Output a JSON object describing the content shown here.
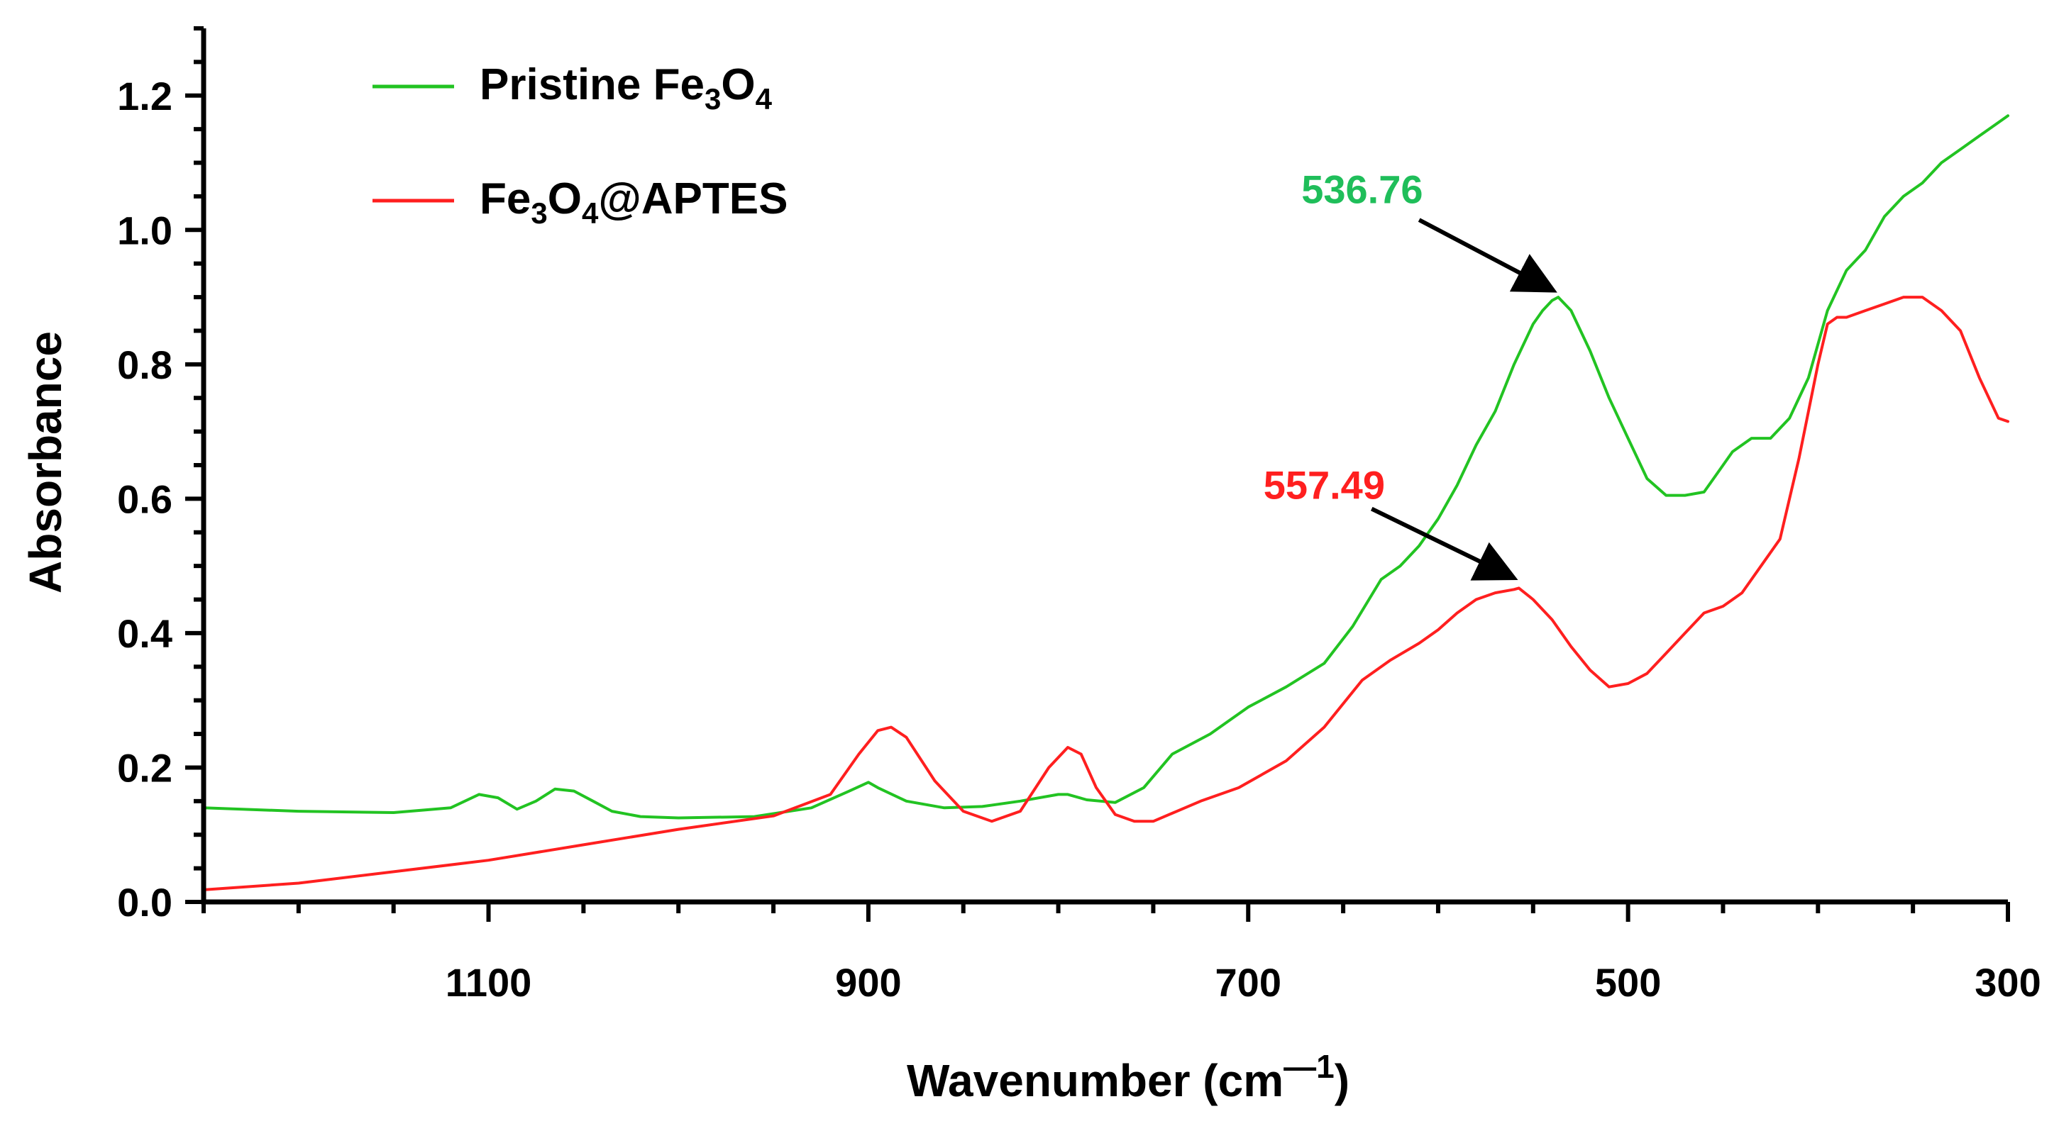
{
  "chart_data": {
    "type": "line",
    "title": "",
    "xlabel": "Wavenumber (cm",
    "xlabel_sup": "—1",
    "xlabel_close": ")",
    "ylabel": "Absorbance",
    "xlim": [
      1250,
      300
    ],
    "ylim": [
      0,
      1.3
    ],
    "xticks": [
      1100,
      900,
      700,
      500,
      300
    ],
    "xtick_labels": [
      "1100",
      "900",
      "700",
      "500",
      "300"
    ],
    "yticks": [
      0,
      0.2,
      0.4,
      0.6,
      0.8,
      1.0,
      1.2
    ],
    "ytick_labels": [
      "0.0",
      "0.2",
      "0.4",
      "0.6",
      "0.8",
      "1.0",
      "1.2"
    ],
    "grid": false,
    "legend_position": "top-left",
    "series": [
      {
        "name": "Pristine Fe3O4",
        "legend_main": "Pristine Fe",
        "legend_sub1": "3",
        "legend_mid": "O",
        "legend_sub2": "4",
        "legend_end": "",
        "color": "#22c322",
        "x": [
          1250,
          1200,
          1150,
          1120,
          1105,
          1095,
          1085,
          1075,
          1065,
          1055,
          1045,
          1035,
          1020,
          1000,
          960,
          930,
          910,
          900,
          895,
          880,
          860,
          840,
          820,
          800,
          795,
          785,
          770,
          755,
          740,
          720,
          700,
          680,
          660,
          645,
          630,
          620,
          610,
          600,
          590,
          580,
          570,
          560,
          550,
          545,
          540,
          536.76,
          530,
          520,
          510,
          500,
          490,
          480,
          470,
          460,
          455,
          445,
          435,
          425,
          415,
          405,
          395,
          385,
          375,
          365,
          355,
          345,
          335,
          325,
          315,
          305,
          300
        ],
        "y": [
          0.14,
          0.135,
          0.133,
          0.14,
          0.16,
          0.155,
          0.138,
          0.15,
          0.168,
          0.165,
          0.15,
          0.135,
          0.127,
          0.125,
          0.127,
          0.14,
          0.165,
          0.178,
          0.17,
          0.15,
          0.14,
          0.142,
          0.15,
          0.16,
          0.16,
          0.152,
          0.148,
          0.17,
          0.22,
          0.25,
          0.29,
          0.32,
          0.355,
          0.41,
          0.48,
          0.5,
          0.53,
          0.57,
          0.62,
          0.68,
          0.73,
          0.8,
          0.86,
          0.88,
          0.895,
          0.9,
          0.88,
          0.82,
          0.75,
          0.69,
          0.63,
          0.605,
          0.605,
          0.61,
          0.63,
          0.67,
          0.69,
          0.69,
          0.72,
          0.78,
          0.88,
          0.94,
          0.97,
          1.02,
          1.05,
          1.07,
          1.1,
          1.12,
          1.14,
          1.16,
          1.17
        ]
      },
      {
        "name": "Fe3O4@APTES",
        "legend_main": "Fe",
        "legend_sub1": "3",
        "legend_mid": "O",
        "legend_sub2": "4",
        "legend_end": "@APTES",
        "color": "#ff1f1f",
        "x": [
          1250,
          1200,
          1150,
          1100,
          1050,
          1000,
          950,
          920,
          905,
          895,
          888,
          880,
          865,
          850,
          835,
          820,
          805,
          795,
          788,
          780,
          770,
          760,
          750,
          740,
          725,
          705,
          680,
          660,
          640,
          625,
          610,
          600,
          590,
          580,
          570,
          560,
          557.49,
          550,
          540,
          530,
          520,
          510,
          500,
          490,
          480,
          470,
          460,
          450,
          440,
          430,
          420,
          410,
          400,
          395,
          390,
          385,
          375,
          365,
          355,
          350,
          345,
          335,
          325,
          315,
          305,
          300
        ],
        "y": [
          0.018,
          0.028,
          0.045,
          0.062,
          0.085,
          0.108,
          0.128,
          0.16,
          0.22,
          0.255,
          0.26,
          0.245,
          0.18,
          0.135,
          0.12,
          0.135,
          0.2,
          0.23,
          0.22,
          0.17,
          0.13,
          0.12,
          0.12,
          0.132,
          0.15,
          0.17,
          0.21,
          0.26,
          0.33,
          0.36,
          0.385,
          0.405,
          0.43,
          0.45,
          0.46,
          0.465,
          0.467,
          0.45,
          0.42,
          0.38,
          0.345,
          0.32,
          0.325,
          0.34,
          0.37,
          0.4,
          0.43,
          0.44,
          0.46,
          0.5,
          0.54,
          0.66,
          0.8,
          0.86,
          0.87,
          0.87,
          0.88,
          0.89,
          0.9,
          0.9,
          0.9,
          0.88,
          0.85,
          0.78,
          0.72,
          0.715
        ]
      }
    ],
    "annotations": [
      {
        "text": "536.76",
        "color": "#1fbe5a",
        "target_x": 536.76,
        "target_y": 0.9,
        "text_x": 640,
        "text_y": 1.04,
        "tail_x": 610,
        "tail_y": 1.015
      },
      {
        "text": "557.49",
        "color": "#ff1f1f",
        "target_x": 557.49,
        "target_y": 0.472,
        "text_x": 660,
        "text_y": 0.6,
        "tail_x": 635,
        "tail_y": 0.585
      }
    ]
  }
}
